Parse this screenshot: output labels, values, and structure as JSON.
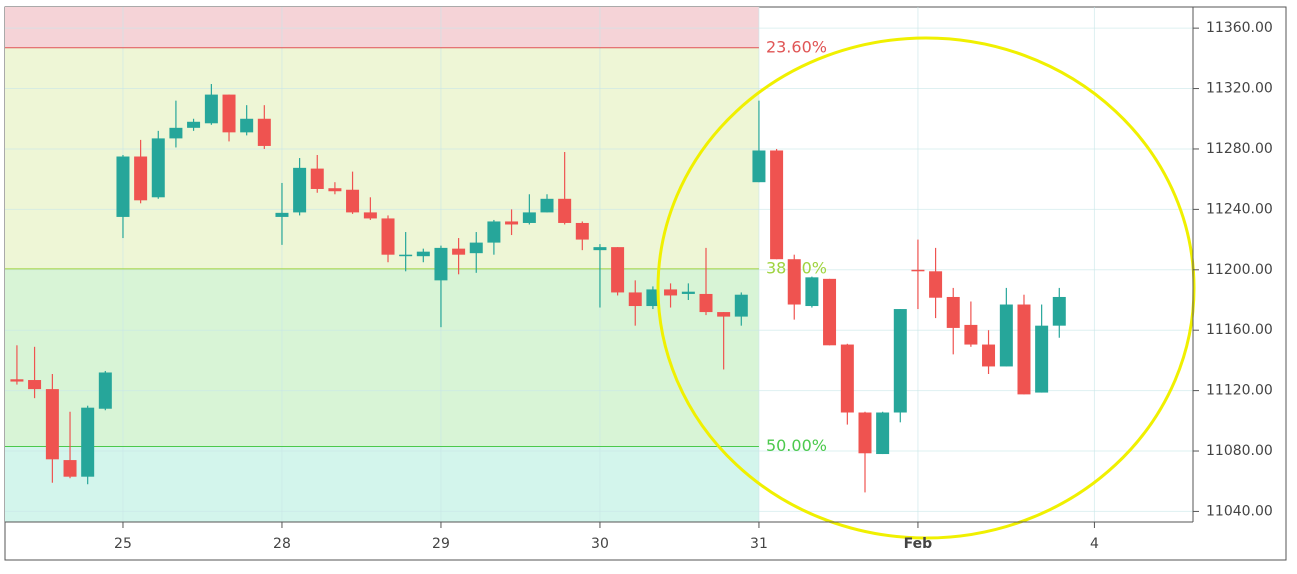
{
  "chart_data": {
    "type": "candlestick",
    "x": [
      -0.667,
      -0.556,
      -0.444,
      -0.333,
      -0.222,
      -0.111,
      0,
      0.111,
      0.222,
      0.333,
      0.444,
      0.556,
      0.667,
      0.778,
      0.889,
      1,
      1.111,
      1.222,
      1.333,
      1.444,
      1.556,
      1.667,
      1.778,
      1.889,
      2,
      2.111,
      2.222,
      2.333,
      2.444,
      2.556,
      2.667,
      2.778,
      2.889,
      3,
      3.111,
      3.222,
      3.333,
      3.444,
      3.556,
      3.667,
      3.778,
      3.889,
      4,
      4.111,
      4.222,
      4.333,
      4.444,
      4.556,
      4.667,
      4.778,
      4.889,
      5,
      5.111,
      5.222,
      5.333,
      5.444,
      5.556,
      5.667,
      5.778,
      5.889
    ],
    "open": [
      11127.5,
      11127,
      11121,
      11074,
      11063,
      11108,
      11235,
      11275,
      11248,
      11287,
      11294,
      11297,
      11316,
      11291,
      11300,
      11235,
      11238,
      11267,
      11254,
      11253,
      11238,
      11234,
      11209,
      11209,
      11193,
      11214,
      11211,
      11218,
      11232,
      11231,
      11238,
      11247,
      11231,
      11213,
      11215,
      11185,
      11176,
      11187,
      11184,
      11184,
      11172,
      11169,
      11258,
      11279,
      11207,
      11176,
      11194,
      11150.5,
      11105.5,
      11078,
      11105.5,
      11200,
      11199,
      11182,
      11163.5,
      11150.5,
      11136,
      11177,
      11118.7,
      11163
    ],
    "high": [
      11150,
      11149,
      11131,
      11106,
      11110,
      11133,
      11276,
      11286,
      11292,
      11312,
      11300,
      11323,
      11316,
      11309,
      11309,
      11257.5,
      11274,
      11276,
      11258,
      11265,
      11248,
      11236,
      11225,
      11214,
      11216,
      11221,
      11225,
      11233,
      11240,
      11250,
      11250,
      11278,
      11232,
      11217,
      11215,
      11193,
      11189,
      11191,
      11191,
      11214.5,
      11172,
      11185,
      11312,
      11280,
      11210,
      11195.5,
      11194,
      11151,
      11106,
      11106,
      11174,
      11220,
      11214.5,
      11188,
      11179,
      11160,
      11188,
      11183.5,
      11177,
      11188
    ],
    "low": [
      11124,
      11115,
      11059,
      11062,
      11058,
      11107,
      11221,
      11244,
      11247,
      11281,
      11292,
      11296,
      11285,
      11289,
      11280,
      11216.5,
      11236,
      11251,
      11250,
      11237,
      11233,
      11205,
      11199,
      11205,
      11162,
      11197,
      11198,
      11210,
      11223,
      11230,
      11238,
      11230,
      11213,
      11175,
      11183,
      11163,
      11174,
      11175,
      11180,
      11170,
      11134,
      11163,
      11258,
      11207,
      11167,
      11175,
      11150,
      11097.5,
      11052.6,
      11078,
      11099,
      11174,
      11168,
      11144,
      11149,
      11131,
      11136,
      11117.5,
      11118.7,
      11155
    ],
    "close": [
      11126,
      11121,
      11074.5,
      11063,
      11108.7,
      11132,
      11275,
      11246,
      11287,
      11294,
      11298,
      11316,
      11291,
      11300,
      11282,
      11237.7,
      11267.5,
      11253.5,
      11252,
      11238,
      11234,
      11210,
      11210,
      11212,
      11214.5,
      11210,
      11218,
      11232,
      11230,
      11238,
      11247,
      11231,
      11220,
      11215,
      11185,
      11176,
      11187,
      11183,
      11185.5,
      11172,
      11169,
      11183.5,
      11279,
      11207,
      11177,
      11195,
      11150,
      11105.5,
      11078.5,
      11105.5,
      11174,
      11199,
      11181.5,
      11161.5,
      11150.5,
      11136,
      11177,
      11117.5,
      11163,
      11182
    ],
    "up_color": "#26a69a",
    "down_color": "#ef5350",
    "xlim": [
      -0.742,
      6.73
    ],
    "xticks": [
      {
        "value": 0,
        "label": "25"
      },
      {
        "value": 1,
        "label": "28"
      },
      {
        "value": 2,
        "label": "29"
      },
      {
        "value": 3,
        "label": "30"
      },
      {
        "value": 4,
        "label": "31"
      },
      {
        "value": 5,
        "label": "Feb",
        "bold": true
      },
      {
        "value": 6.11,
        "label": "4"
      }
    ],
    "ylim": [
      11033,
      11374
    ],
    "yticks": [
      {
        "value": 11040,
        "label": "11040.00"
      },
      {
        "value": 11080,
        "label": "11080.00"
      },
      {
        "value": 11120,
        "label": "11120.00"
      },
      {
        "value": 11160,
        "label": "11160.00"
      },
      {
        "value": 11200,
        "label": "11200.00"
      },
      {
        "value": 11240,
        "label": "11240.00"
      },
      {
        "value": 11280,
        "label": "11280.00"
      },
      {
        "value": 11320,
        "label": "11320.00"
      },
      {
        "value": 11360,
        "label": "11360.00"
      }
    ],
    "grid": true,
    "fib": {
      "end_x": 4,
      "levels": [
        {
          "label": "23.60%",
          "value": 11347,
          "color": "#e05555"
        },
        {
          "label": "38.20%",
          "value": 11200.6,
          "color": "#9fd33f"
        },
        {
          "label": "50.00%",
          "value": 11083,
          "color": "#4cc94c"
        }
      ],
      "zone_colors": [
        "#f5d3d7",
        "#eef6d6",
        "#d8f4d6",
        "#d3f5ec"
      ]
    }
  }
}
